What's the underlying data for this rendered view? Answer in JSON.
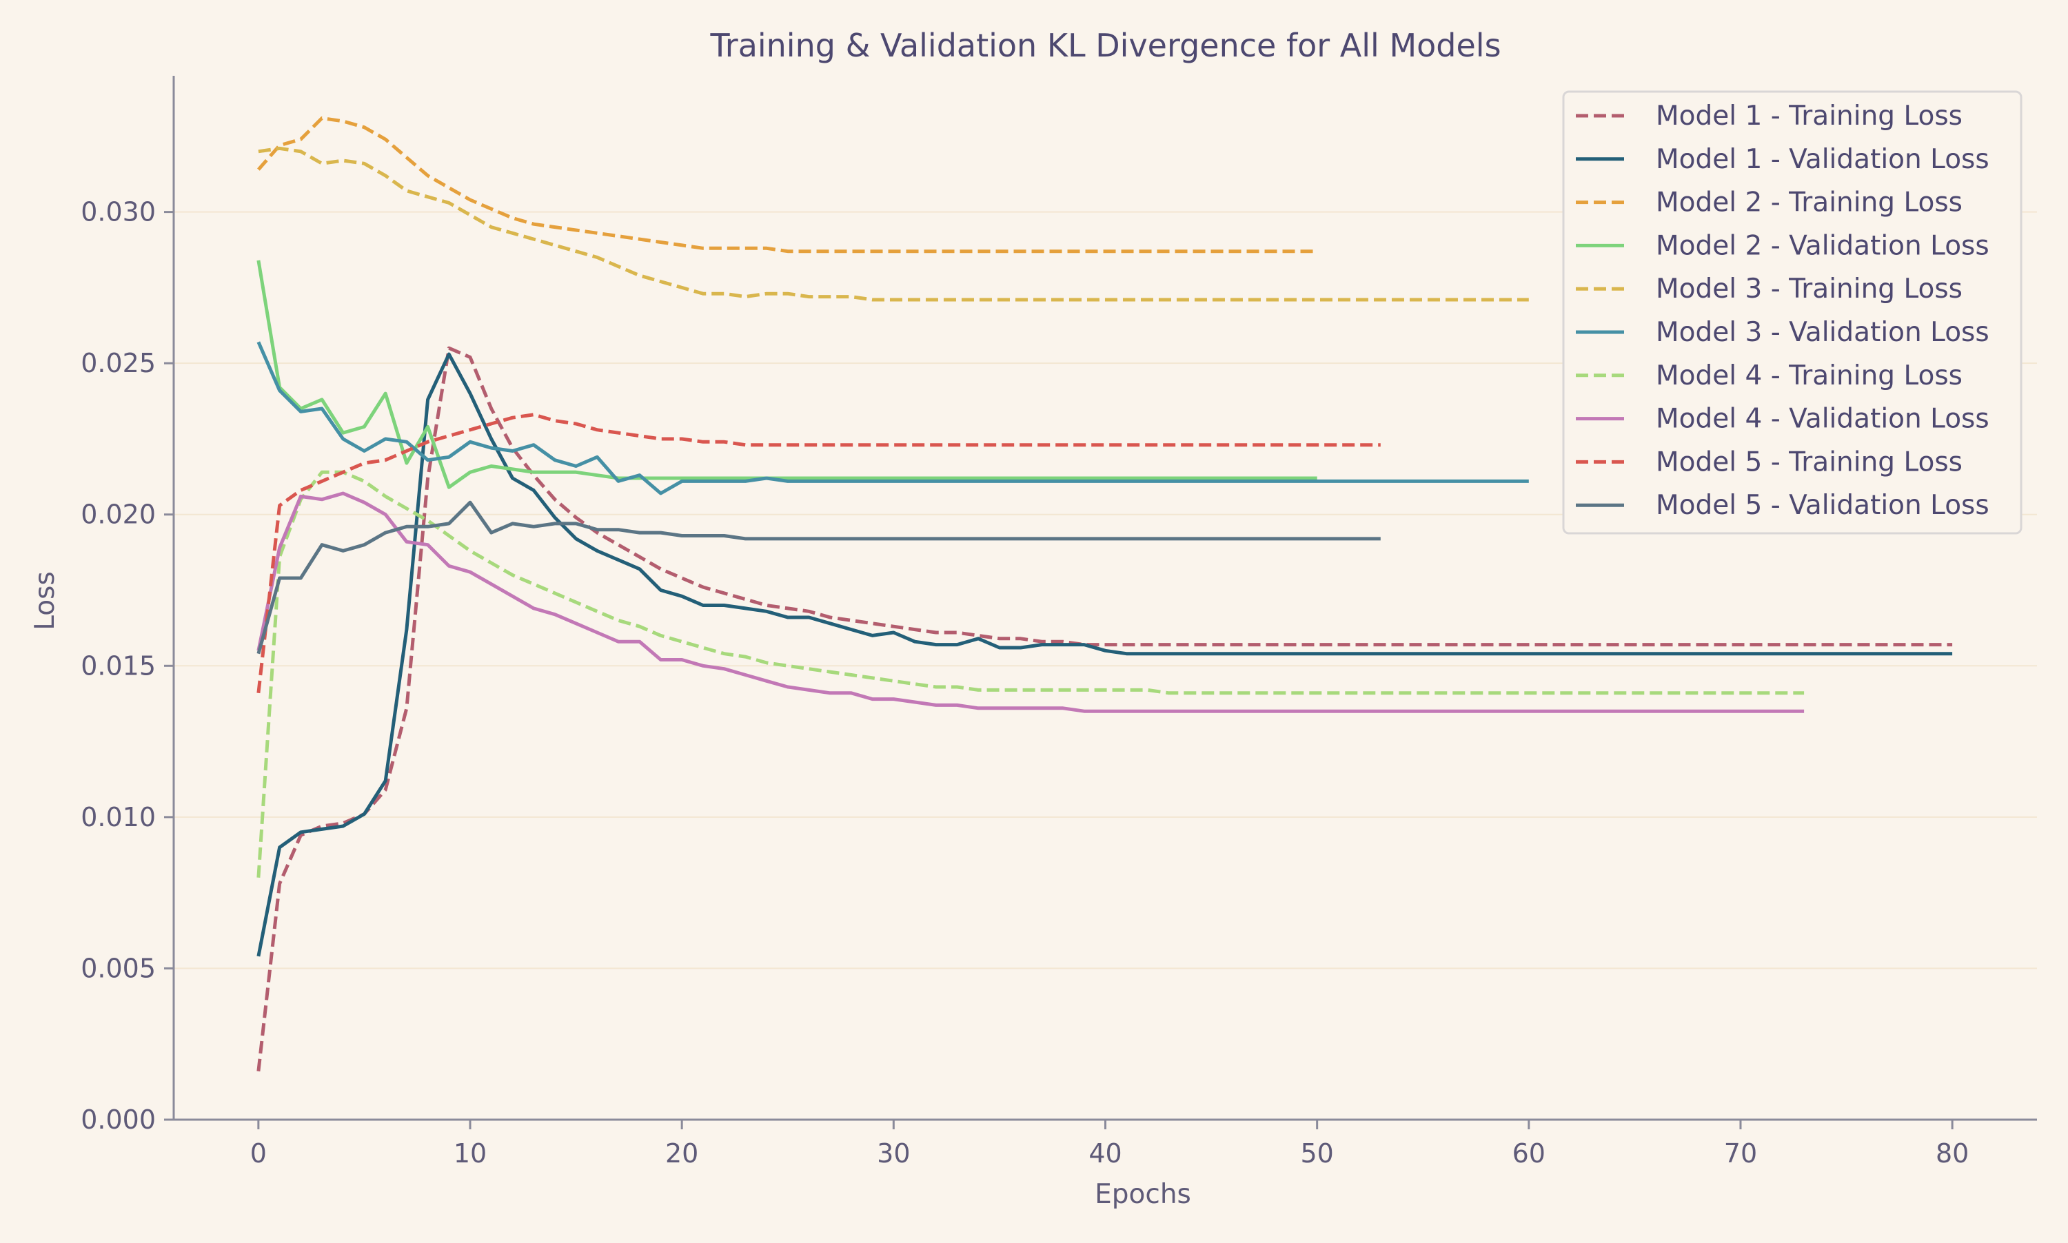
{
  "chart_data": {
    "type": "line",
    "title": "Training & Validation KL Divergence for All Models",
    "xlabel": "Epochs",
    "ylabel": "Loss",
    "xlim": [
      -4,
      84
    ],
    "ylim": [
      0.0,
      0.0345
    ],
    "xticks": [
      0,
      10,
      20,
      30,
      40,
      50,
      60,
      70,
      80
    ],
    "yticks": [
      0.0,
      0.005,
      0.01,
      0.015,
      0.02,
      0.025,
      0.03
    ],
    "ytick_labels": [
      "0.000",
      "0.005",
      "0.010",
      "0.015",
      "0.020",
      "0.025",
      "0.030"
    ],
    "grid": "horizontal",
    "legend_position": "top-right",
    "colors": {
      "background": "#faf4ec",
      "axis": "#8a8a9a",
      "text": "#4d4870",
      "tick_text": "#5e5a78",
      "grid": "#f3e6d2"
    },
    "series": [
      {
        "name": "Model 1 - Training Loss",
        "style": "dashed",
        "color": "#b35d6e",
        "x_start": 0,
        "values": [
          0.0016,
          0.0078,
          0.0094,
          0.0097,
          0.0098,
          0.0101,
          0.0109,
          0.0136,
          0.0212,
          0.0255,
          0.0252,
          0.0235,
          0.0222,
          0.0213,
          0.0205,
          0.0199,
          0.0194,
          0.019,
          0.0186,
          0.0182,
          0.0179,
          0.0176,
          0.0174,
          0.0172,
          0.017,
          0.0169,
          0.0168,
          0.0166,
          0.0165,
          0.0164,
          0.0163,
          0.0162,
          0.0161,
          0.0161,
          0.016,
          0.0159,
          0.0159,
          0.0158,
          0.0158,
          0.0157,
          0.0157,
          0.0157,
          0.0157,
          0.0157,
          0.0157,
          0.0157,
          0.0157,
          0.0157,
          0.0157,
          0.0157,
          0.0157,
          0.0157,
          0.0157,
          0.0157,
          0.0157,
          0.0157,
          0.0157,
          0.0157,
          0.0157,
          0.0157,
          0.0157,
          0.0157,
          0.0157,
          0.0157,
          0.0157,
          0.0157,
          0.0157,
          0.0157,
          0.0157,
          0.0157,
          0.0157,
          0.0157,
          0.0157,
          0.0157,
          0.0157,
          0.0157,
          0.0157,
          0.0157,
          0.0157,
          0.0157,
          0.0157
        ]
      },
      {
        "name": "Model 1 - Validation Loss",
        "style": "solid",
        "color": "#235f78",
        "x_start": 0,
        "values": [
          0.0054,
          0.009,
          0.0095,
          0.0096,
          0.0097,
          0.0101,
          0.0112,
          0.0162,
          0.0238,
          0.0253,
          0.024,
          0.0225,
          0.0212,
          0.0208,
          0.0199,
          0.0192,
          0.0188,
          0.0185,
          0.0182,
          0.0175,
          0.0173,
          0.017,
          0.017,
          0.0169,
          0.0168,
          0.0166,
          0.0166,
          0.0164,
          0.0162,
          0.016,
          0.0161,
          0.0158,
          0.0157,
          0.0157,
          0.0159,
          0.0156,
          0.0156,
          0.0157,
          0.0157,
          0.0157,
          0.0155,
          0.0154,
          0.0154,
          0.0154,
          0.0154,
          0.0154,
          0.0154,
          0.0154,
          0.0154,
          0.0154,
          0.0154,
          0.0154,
          0.0154,
          0.0154,
          0.0154,
          0.0154,
          0.0154,
          0.0154,
          0.0154,
          0.0154,
          0.0154,
          0.0154,
          0.0154,
          0.0154,
          0.0154,
          0.0154,
          0.0154,
          0.0154,
          0.0154,
          0.0154,
          0.0154,
          0.0154,
          0.0154,
          0.0154,
          0.0154,
          0.0154,
          0.0154,
          0.0154,
          0.0154,
          0.0154,
          0.0154
        ]
      },
      {
        "name": "Model 2 - Training Loss",
        "style": "dashed",
        "color": "#e5a03c",
        "x_start": 0,
        "values": [
          0.0314,
          0.0322,
          0.0324,
          0.0331,
          0.033,
          0.0328,
          0.0324,
          0.0318,
          0.0312,
          0.0308,
          0.0304,
          0.0301,
          0.0298,
          0.0296,
          0.0295,
          0.0294,
          0.0293,
          0.0292,
          0.0291,
          0.029,
          0.0289,
          0.0288,
          0.0288,
          0.0288,
          0.0288,
          0.0287,
          0.0287,
          0.0287,
          0.0287,
          0.0287,
          0.0287,
          0.0287,
          0.0287,
          0.0287,
          0.0287,
          0.0287,
          0.0287,
          0.0287,
          0.0287,
          0.0287,
          0.0287,
          0.0287,
          0.0287,
          0.0287,
          0.0287,
          0.0287,
          0.0287,
          0.0287,
          0.0287,
          0.0287,
          0.0287
        ]
      },
      {
        "name": "Model 2 - Validation Loss",
        "style": "solid",
        "color": "#7dd37b",
        "x_start": 0,
        "values": [
          0.0284,
          0.0242,
          0.0235,
          0.0238,
          0.0227,
          0.0229,
          0.024,
          0.0217,
          0.0229,
          0.0209,
          0.0214,
          0.0216,
          0.0215,
          0.0214,
          0.0214,
          0.0214,
          0.0213,
          0.0212,
          0.0212,
          0.0212,
          0.0212,
          0.0212,
          0.0212,
          0.0212,
          0.0212,
          0.0212,
          0.0212,
          0.0212,
          0.0212,
          0.0212,
          0.0212,
          0.0212,
          0.0212,
          0.0212,
          0.0212,
          0.0212,
          0.0212,
          0.0212,
          0.0212,
          0.0212,
          0.0212,
          0.0212,
          0.0212,
          0.0212,
          0.0212,
          0.0212,
          0.0212,
          0.0212,
          0.0212,
          0.0212,
          0.0212
        ]
      },
      {
        "name": "Model 3 - Training Loss",
        "style": "dashed",
        "color": "#d9b64d",
        "x_start": 0,
        "values": [
          0.032,
          0.0321,
          0.032,
          0.0316,
          0.0317,
          0.0316,
          0.0312,
          0.0307,
          0.0305,
          0.0303,
          0.0299,
          0.0295,
          0.0293,
          0.0291,
          0.0289,
          0.0287,
          0.0285,
          0.0282,
          0.0279,
          0.0277,
          0.0275,
          0.0273,
          0.0273,
          0.0272,
          0.0273,
          0.0273,
          0.0272,
          0.0272,
          0.0272,
          0.0271,
          0.0271,
          0.0271,
          0.0271,
          0.0271,
          0.0271,
          0.0271,
          0.0271,
          0.0271,
          0.0271,
          0.0271,
          0.0271,
          0.0271,
          0.0271,
          0.0271,
          0.0271,
          0.0271,
          0.0271,
          0.0271,
          0.0271,
          0.0271,
          0.0271,
          0.0271,
          0.0271,
          0.0271,
          0.0271,
          0.0271,
          0.0271,
          0.0271,
          0.0271,
          0.0271,
          0.0271
        ]
      },
      {
        "name": "Model 3 - Validation Loss",
        "style": "solid",
        "color": "#4590a5",
        "x_start": 0,
        "values": [
          0.0257,
          0.0241,
          0.0234,
          0.0235,
          0.0225,
          0.0221,
          0.0225,
          0.0224,
          0.0218,
          0.0219,
          0.0224,
          0.0222,
          0.0221,
          0.0223,
          0.0218,
          0.0216,
          0.0219,
          0.0211,
          0.0213,
          0.0207,
          0.0211,
          0.0211,
          0.0211,
          0.0211,
          0.0212,
          0.0211,
          0.0211,
          0.0211,
          0.0211,
          0.0211,
          0.0211,
          0.0211,
          0.0211,
          0.0211,
          0.0211,
          0.0211,
          0.0211,
          0.0211,
          0.0211,
          0.0211,
          0.0211,
          0.0211,
          0.0211,
          0.0211,
          0.0211,
          0.0211,
          0.0211,
          0.0211,
          0.0211,
          0.0211,
          0.0211,
          0.0211,
          0.0211,
          0.0211,
          0.0211,
          0.0211,
          0.0211,
          0.0211,
          0.0211,
          0.0211,
          0.0211
        ]
      },
      {
        "name": "Model 4 - Training Loss",
        "style": "dashed",
        "color": "#a7d97c",
        "x_start": 0,
        "values": [
          0.008,
          0.0186,
          0.0205,
          0.0214,
          0.0214,
          0.0211,
          0.0206,
          0.0202,
          0.0198,
          0.0193,
          0.0188,
          0.0184,
          0.018,
          0.0177,
          0.0174,
          0.0171,
          0.0168,
          0.0165,
          0.0163,
          0.016,
          0.0158,
          0.0156,
          0.0154,
          0.0153,
          0.0151,
          0.015,
          0.0149,
          0.0148,
          0.0147,
          0.0146,
          0.0145,
          0.0144,
          0.0143,
          0.0143,
          0.0142,
          0.0142,
          0.0142,
          0.0142,
          0.0142,
          0.0142,
          0.0142,
          0.0142,
          0.0142,
          0.0141,
          0.0141,
          0.0141,
          0.0141,
          0.0141,
          0.0141,
          0.0141,
          0.0141,
          0.0141,
          0.0141,
          0.0141,
          0.0141,
          0.0141,
          0.0141,
          0.0141,
          0.0141,
          0.0141,
          0.0141,
          0.0141,
          0.0141,
          0.0141,
          0.0141,
          0.0141,
          0.0141,
          0.0141,
          0.0141,
          0.0141,
          0.0141,
          0.0141,
          0.0141,
          0.0141
        ]
      },
      {
        "name": "Model 4 - Validation Loss",
        "style": "solid",
        "color": "#c278b6",
        "x_start": 0,
        "values": [
          0.0155,
          0.0189,
          0.0206,
          0.0205,
          0.0207,
          0.0204,
          0.02,
          0.0191,
          0.019,
          0.0183,
          0.0181,
          0.0177,
          0.0173,
          0.0169,
          0.0167,
          0.0164,
          0.0161,
          0.0158,
          0.0158,
          0.0152,
          0.0152,
          0.015,
          0.0149,
          0.0147,
          0.0145,
          0.0143,
          0.0142,
          0.0141,
          0.0141,
          0.0139,
          0.0139,
          0.0138,
          0.0137,
          0.0137,
          0.0136,
          0.0136,
          0.0136,
          0.0136,
          0.0136,
          0.0135,
          0.0135,
          0.0135,
          0.0135,
          0.0135,
          0.0135,
          0.0135,
          0.0135,
          0.0135,
          0.0135,
          0.0135,
          0.0135,
          0.0135,
          0.0135,
          0.0135,
          0.0135,
          0.0135,
          0.0135,
          0.0135,
          0.0135,
          0.0135,
          0.0135,
          0.0135,
          0.0135,
          0.0135,
          0.0135,
          0.0135,
          0.0135,
          0.0135,
          0.0135,
          0.0135,
          0.0135,
          0.0135,
          0.0135,
          0.0135
        ]
      },
      {
        "name": "Model 5 - Training Loss",
        "style": "dashed",
        "color": "#d9564f",
        "x_start": 0,
        "values": [
          0.0141,
          0.0203,
          0.0208,
          0.0211,
          0.0214,
          0.0217,
          0.0218,
          0.0221,
          0.0224,
          0.0226,
          0.0228,
          0.023,
          0.0232,
          0.0233,
          0.0231,
          0.023,
          0.0228,
          0.0227,
          0.0226,
          0.0225,
          0.0225,
          0.0224,
          0.0224,
          0.0223,
          0.0223,
          0.0223,
          0.0223,
          0.0223,
          0.0223,
          0.0223,
          0.0223,
          0.0223,
          0.0223,
          0.0223,
          0.0223,
          0.0223,
          0.0223,
          0.0223,
          0.0223,
          0.0223,
          0.0223,
          0.0223,
          0.0223,
          0.0223,
          0.0223,
          0.0223,
          0.0223,
          0.0223,
          0.0223,
          0.0223,
          0.0223,
          0.0223,
          0.0223,
          0.0223
        ]
      },
      {
        "name": "Model 5 - Validation Loss",
        "style": "solid",
        "color": "#5b7585",
        "x_start": 0,
        "values": [
          0.0154,
          0.0179,
          0.0179,
          0.019,
          0.0188,
          0.019,
          0.0194,
          0.0196,
          0.0196,
          0.0197,
          0.0204,
          0.0194,
          0.0197,
          0.0196,
          0.0197,
          0.0197,
          0.0195,
          0.0195,
          0.0194,
          0.0194,
          0.0193,
          0.0193,
          0.0193,
          0.0192,
          0.0192,
          0.0192,
          0.0192,
          0.0192,
          0.0192,
          0.0192,
          0.0192,
          0.0192,
          0.0192,
          0.0192,
          0.0192,
          0.0192,
          0.0192,
          0.0192,
          0.0192,
          0.0192,
          0.0192,
          0.0192,
          0.0192,
          0.0192,
          0.0192,
          0.0192,
          0.0192,
          0.0192,
          0.0192,
          0.0192,
          0.0192,
          0.0192,
          0.0192,
          0.0192
        ]
      }
    ]
  }
}
